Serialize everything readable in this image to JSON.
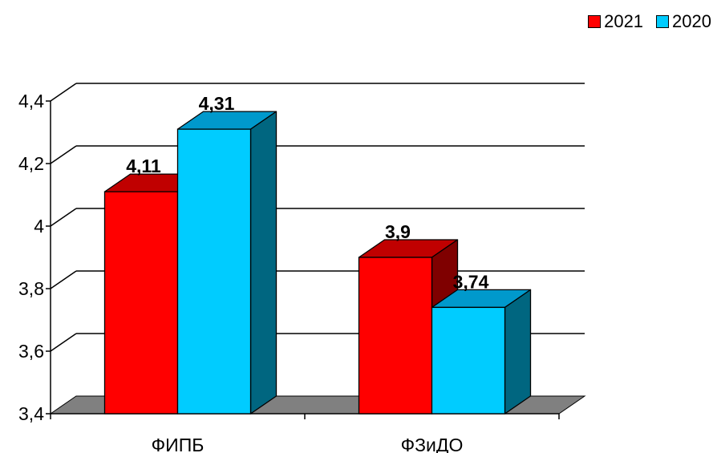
{
  "chart_data": {
    "type": "bar",
    "style": "3d-clustered-column",
    "categories": [
      "ФИПБ",
      "ФЗиДО"
    ],
    "series": [
      {
        "name": "2021",
        "values": [
          4.11,
          3.9
        ],
        "labels": [
          "4,11",
          "3,9"
        ],
        "color": "#ff0000",
        "top_color": "#c00000",
        "side_color": "#7f0000"
      },
      {
        "name": "2020",
        "values": [
          4.31,
          3.74
        ],
        "labels": [
          "4,31",
          "3,74"
        ],
        "color": "#00ccff",
        "top_color": "#0099cc",
        "side_color": "#006680"
      }
    ],
    "ylim": [
      3.4,
      4.4
    ],
    "yticks": [
      3.4,
      3.6,
      3.8,
      4.0,
      4.2,
      4.4
    ],
    "ytick_labels": [
      "3,4",
      "3,6",
      "3,8",
      "4",
      "4,2",
      "4,4"
    ],
    "grid": true,
    "legend_position": "top-right",
    "floor_color": "#808080"
  }
}
